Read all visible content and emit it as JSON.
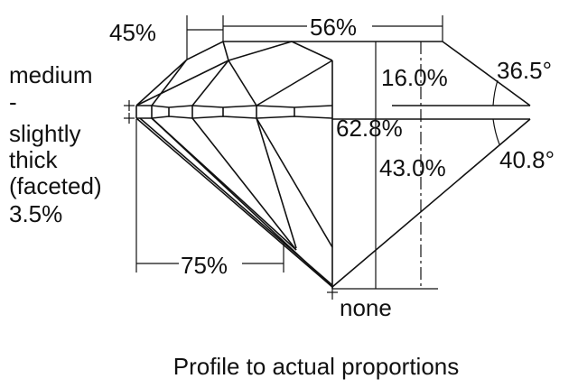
{
  "diagram": {
    "girdle_label": [
      "medium",
      "-",
      "slightly",
      "thick",
      "(faceted)",
      "3.5%"
    ],
    "star_length": "45%",
    "table_size": "56%",
    "crown_height": "16.0%",
    "crown_angle": "36.5°",
    "total_depth": "62.8%",
    "pavilion_depth": "43.0%",
    "pavilion_angle": "40.8°",
    "lower_half_length": "75%",
    "culet": "none",
    "caption": "Profile to actual proportions"
  }
}
